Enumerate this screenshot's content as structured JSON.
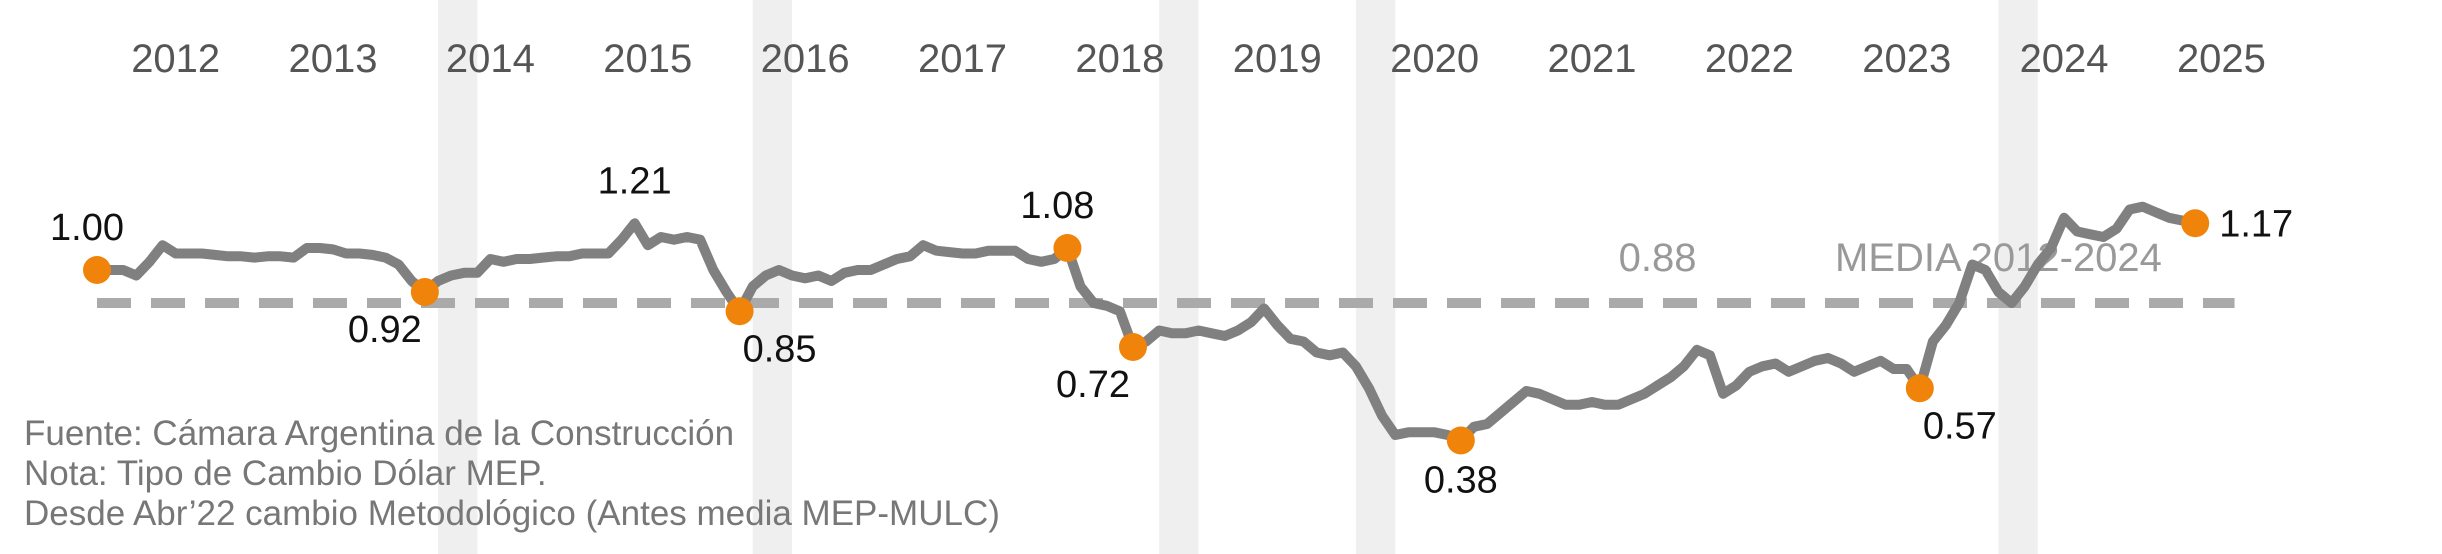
{
  "chart_data": {
    "type": "line",
    "title": "",
    "xlabel": "",
    "ylabel": "",
    "years": [
      "2012",
      "2013",
      "2014",
      "2015",
      "2016",
      "2017",
      "2018",
      "2019",
      "2020",
      "2021",
      "2022",
      "2023",
      "2024",
      "2025"
    ],
    "x_start": "2012-01",
    "x_end": "2025-12",
    "ylim": [
      0.2,
      1.4
    ],
    "grid": false,
    "shaded_periods": [
      [
        "2014-03",
        "2014-06"
      ],
      [
        "2016-03",
        "2016-06"
      ],
      [
        "2018-10",
        "2019-01"
      ],
      [
        "2020-01",
        "2020-04"
      ],
      [
        "2024-02",
        "2024-05"
      ]
    ],
    "series": [
      {
        "values": [
          [
            "2012-01",
            1.0
          ],
          [
            "2012-02",
            1.0
          ],
          [
            "2012-03",
            1.0
          ],
          [
            "2012-04",
            0.98
          ],
          [
            "2012-05",
            1.03
          ],
          [
            "2012-06",
            1.09
          ],
          [
            "2012-07",
            1.06
          ],
          [
            "2012-08",
            1.06
          ],
          [
            "2012-09",
            1.06
          ],
          [
            "2012-10",
            1.055
          ],
          [
            "2012-11",
            1.05
          ],
          [
            "2012-12",
            1.05
          ],
          [
            "2013-01",
            1.045
          ],
          [
            "2013-02",
            1.05
          ],
          [
            "2013-03",
            1.05
          ],
          [
            "2013-04",
            1.045
          ],
          [
            "2013-05",
            1.08
          ],
          [
            "2013-06",
            1.08
          ],
          [
            "2013-07",
            1.075
          ],
          [
            "2013-08",
            1.06
          ],
          [
            "2013-09",
            1.06
          ],
          [
            "2013-10",
            1.055
          ],
          [
            "2013-11",
            1.045
          ],
          [
            "2013-12",
            1.02
          ],
          [
            "2014-01",
            0.96
          ],
          [
            "2014-02",
            0.92
          ],
          [
            "2014-03",
            0.96
          ],
          [
            "2014-04",
            0.98
          ],
          [
            "2014-05",
            0.99
          ],
          [
            "2014-06",
            0.99
          ],
          [
            "2014-07",
            1.04
          ],
          [
            "2014-08",
            1.03
          ],
          [
            "2014-09",
            1.04
          ],
          [
            "2014-10",
            1.04
          ],
          [
            "2014-11",
            1.045
          ],
          [
            "2014-12",
            1.05
          ],
          [
            "2015-01",
            1.05
          ],
          [
            "2015-02",
            1.06
          ],
          [
            "2015-03",
            1.06
          ],
          [
            "2015-04",
            1.06
          ],
          [
            "2015-05",
            1.11
          ],
          [
            "2015-06",
            1.17
          ],
          [
            "2015-07",
            1.09
          ],
          [
            "2015-08",
            1.12
          ],
          [
            "2015-09",
            1.11
          ],
          [
            "2015-10",
            1.12
          ],
          [
            "2015-11",
            1.11
          ],
          [
            "2015-12",
            1.0
          ],
          [
            "2016-01",
            0.92
          ],
          [
            "2016-02",
            0.85
          ],
          [
            "2016-03",
            0.94
          ],
          [
            "2016-04",
            0.98
          ],
          [
            "2016-05",
            1.0
          ],
          [
            "2016-06",
            0.98
          ],
          [
            "2016-07",
            0.97
          ],
          [
            "2016-08",
            0.98
          ],
          [
            "2016-09",
            0.96
          ],
          [
            "2016-10",
            0.99
          ],
          [
            "2016-11",
            1.0
          ],
          [
            "2016-12",
            1.0
          ],
          [
            "2017-01",
            1.02
          ],
          [
            "2017-02",
            1.04
          ],
          [
            "2017-03",
            1.05
          ],
          [
            "2017-04",
            1.09
          ],
          [
            "2017-05",
            1.07
          ],
          [
            "2017-06",
            1.065
          ],
          [
            "2017-07",
            1.06
          ],
          [
            "2017-08",
            1.06
          ],
          [
            "2017-09",
            1.07
          ],
          [
            "2017-10",
            1.07
          ],
          [
            "2017-11",
            1.07
          ],
          [
            "2017-12",
            1.04
          ],
          [
            "2018-01",
            1.03
          ],
          [
            "2018-02",
            1.04
          ],
          [
            "2018-03",
            1.08
          ],
          [
            "2018-04",
            0.94
          ],
          [
            "2018-05",
            0.88
          ],
          [
            "2018-06",
            0.87
          ],
          [
            "2018-07",
            0.85
          ],
          [
            "2018-08",
            0.72
          ],
          [
            "2018-09",
            0.74
          ],
          [
            "2018-10",
            0.78
          ],
          [
            "2018-11",
            0.77
          ],
          [
            "2018-12",
            0.77
          ],
          [
            "2019-01",
            0.78
          ],
          [
            "2019-02",
            0.77
          ],
          [
            "2019-03",
            0.76
          ],
          [
            "2019-04",
            0.78
          ],
          [
            "2019-05",
            0.81
          ],
          [
            "2019-06",
            0.86
          ],
          [
            "2019-07",
            0.8
          ],
          [
            "2019-08",
            0.75
          ],
          [
            "2019-09",
            0.74
          ],
          [
            "2019-10",
            0.7
          ],
          [
            "2019-11",
            0.69
          ],
          [
            "2019-12",
            0.7
          ],
          [
            "2020-01",
            0.65
          ],
          [
            "2020-02",
            0.57
          ],
          [
            "2020-03",
            0.47
          ],
          [
            "2020-04",
            0.4
          ],
          [
            "2020-05",
            0.41
          ],
          [
            "2020-06",
            0.41
          ],
          [
            "2020-07",
            0.41
          ],
          [
            "2020-08",
            0.4
          ],
          [
            "2020-09",
            0.38
          ],
          [
            "2020-10",
            0.43
          ],
          [
            "2020-11",
            0.44
          ],
          [
            "2020-12",
            0.48
          ],
          [
            "2021-01",
            0.52
          ],
          [
            "2021-02",
            0.56
          ],
          [
            "2021-03",
            0.55
          ],
          [
            "2021-04",
            0.53
          ],
          [
            "2021-05",
            0.51
          ],
          [
            "2021-06",
            0.51
          ],
          [
            "2021-07",
            0.52
          ],
          [
            "2021-08",
            0.51
          ],
          [
            "2021-09",
            0.51
          ],
          [
            "2021-10",
            0.53
          ],
          [
            "2021-11",
            0.55
          ],
          [
            "2021-12",
            0.58
          ],
          [
            "2022-01",
            0.61
          ],
          [
            "2022-02",
            0.65
          ],
          [
            "2022-03",
            0.71
          ],
          [
            "2022-04",
            0.69
          ],
          [
            "2022-05",
            0.55
          ],
          [
            "2022-06",
            0.58
          ],
          [
            "2022-07",
            0.63
          ],
          [
            "2022-08",
            0.65
          ],
          [
            "2022-09",
            0.66
          ],
          [
            "2022-10",
            0.63
          ],
          [
            "2022-11",
            0.65
          ],
          [
            "2022-12",
            0.67
          ],
          [
            "2023-01",
            0.68
          ],
          [
            "2023-02",
            0.66
          ],
          [
            "2023-03",
            0.63
          ],
          [
            "2023-04",
            0.65
          ],
          [
            "2023-05",
            0.67
          ],
          [
            "2023-06",
            0.64
          ],
          [
            "2023-07",
            0.64
          ],
          [
            "2023-08",
            0.57
          ],
          [
            "2023-09",
            0.74
          ],
          [
            "2023-10",
            0.8
          ],
          [
            "2023-11",
            0.88
          ],
          [
            "2023-12",
            1.02
          ],
          [
            "2024-01",
            1.0
          ],
          [
            "2024-02",
            0.92
          ],
          [
            "2024-03",
            0.88
          ],
          [
            "2024-04",
            0.94
          ],
          [
            "2024-05",
            1.02
          ],
          [
            "2024-06",
            1.08
          ],
          [
            "2024-07",
            1.19
          ],
          [
            "2024-08",
            1.14
          ],
          [
            "2024-09",
            1.13
          ],
          [
            "2024-10",
            1.12
          ],
          [
            "2024-11",
            1.15
          ],
          [
            "2024-12",
            1.22
          ],
          [
            "2025-01",
            1.23
          ],
          [
            "2025-02",
            1.21
          ],
          [
            "2025-03",
            1.19
          ],
          [
            "2025-04",
            1.18
          ],
          [
            "2025-05",
            1.17
          ]
        ],
        "color": "#808080"
      }
    ],
    "mean_line": {
      "value": 0.88,
      "label": "MEDIA 2012-2024",
      "value_label": "0.88",
      "color": "#aaaaaa"
    },
    "annotations": [
      {
        "date": "2012-01",
        "value": 1.0,
        "label": "1.00",
        "label_pos": "above-left",
        "marker": true
      },
      {
        "date": "2014-02",
        "value": 0.92,
        "label": "0.92",
        "label_pos": "below-left",
        "marker": true
      },
      {
        "date": "2015-06",
        "value": 1.17,
        "label": "1.21",
        "label_pos": "above",
        "marker": false
      },
      {
        "date": "2016-02",
        "value": 0.85,
        "label": "0.85",
        "label_pos": "below-right",
        "marker": true
      },
      {
        "date": "2018-03",
        "value": 1.08,
        "label": "1.08",
        "label_pos": "above-left",
        "marker": true
      },
      {
        "date": "2018-08",
        "value": 0.72,
        "label": "0.72",
        "label_pos": "below-left",
        "marker": true
      },
      {
        "date": "2020-09",
        "value": 0.38,
        "label": "0.38",
        "label_pos": "below",
        "marker": true
      },
      {
        "date": "2023-08",
        "value": 0.57,
        "label": "0.57",
        "label_pos": "below-right",
        "marker": true
      },
      {
        "date": "2025-05",
        "value": 1.17,
        "label": "1.17",
        "label_pos": "right",
        "marker": true
      }
    ],
    "marker_color": "#f0840a"
  },
  "notes": {
    "source": "Fuente: Cámara Argentina de la Construcción",
    "note": "Nota: Tipo de Cambio Dólar MEP.",
    "method": "Desde Abr’22 cambio Metodológico (Antes media MEP-MULC)"
  }
}
